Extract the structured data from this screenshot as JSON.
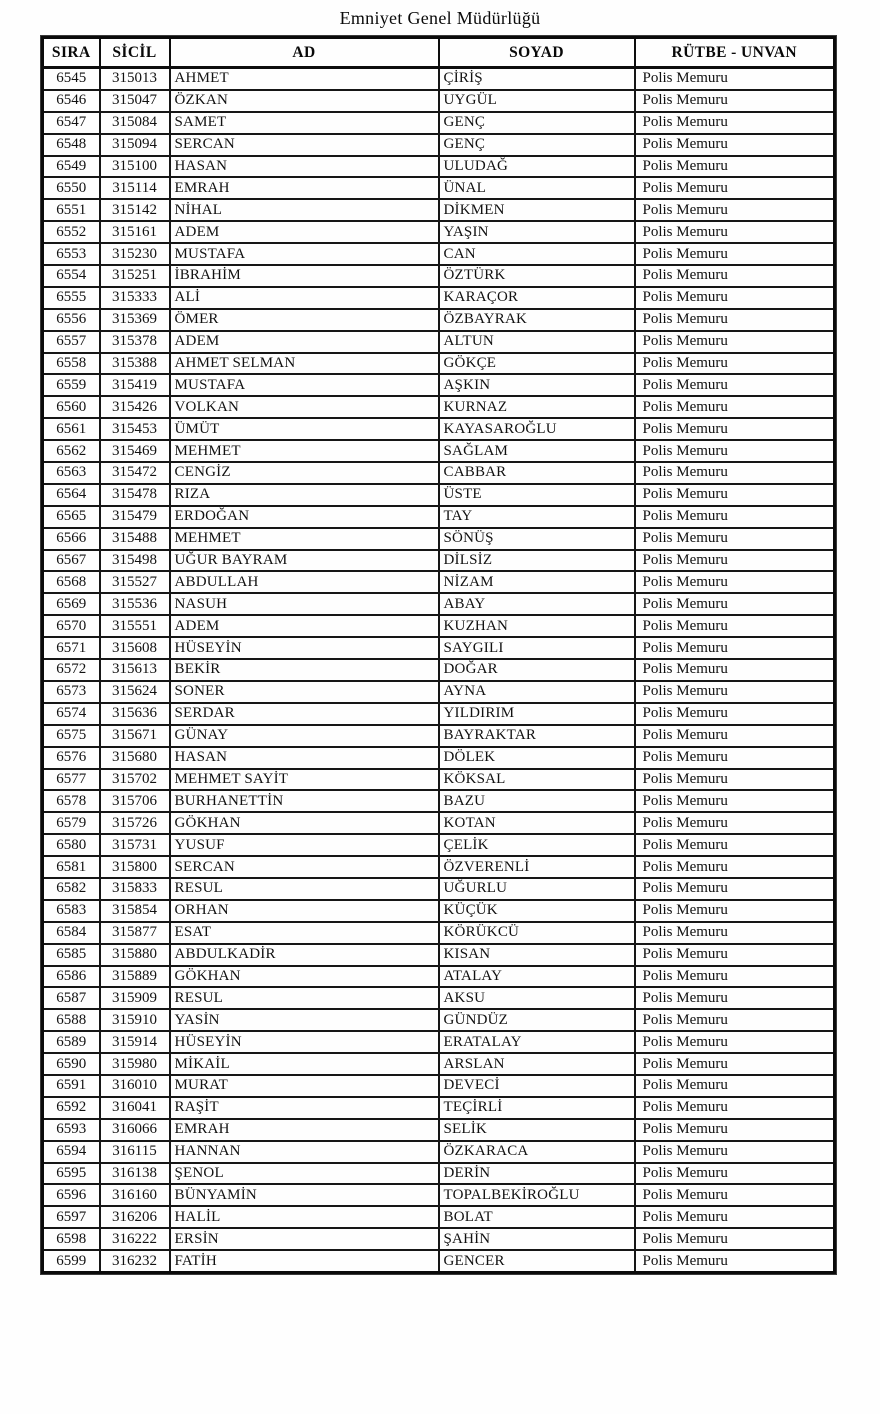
{
  "title": "Emniyet Genel Müdürlüğü",
  "table": {
    "headers": [
      "SIRA",
      "SİCİL",
      "AD",
      "SOYAD",
      "RÜTBE - UNVAN"
    ],
    "rows": [
      [
        "6545",
        "315013",
        "AHMET",
        "ÇİRİŞ",
        "Polis Memuru"
      ],
      [
        "6546",
        "315047",
        "ÖZKAN",
        "UYGÜL",
        "Polis Memuru"
      ],
      [
        "6547",
        "315084",
        "SAMET",
        "GENÇ",
        "Polis Memuru"
      ],
      [
        "6548",
        "315094",
        "SERCAN",
        "GENÇ",
        "Polis Memuru"
      ],
      [
        "6549",
        "315100",
        "HASAN",
        "ULUDAĞ",
        "Polis Memuru"
      ],
      [
        "6550",
        "315114",
        "EMRAH",
        "ÜNAL",
        "Polis Memuru"
      ],
      [
        "6551",
        "315142",
        "NİHAL",
        "DİKMEN",
        "Polis Memuru"
      ],
      [
        "6552",
        "315161",
        "ADEM",
        "YAŞIN",
        "Polis Memuru"
      ],
      [
        "6553",
        "315230",
        "MUSTAFA",
        "CAN",
        "Polis Memuru"
      ],
      [
        "6554",
        "315251",
        "İBRAHİM",
        "ÖZTÜRK",
        "Polis Memuru"
      ],
      [
        "6555",
        "315333",
        "ALİ",
        "KARAÇOR",
        "Polis Memuru"
      ],
      [
        "6556",
        "315369",
        "ÖMER",
        "ÖZBAYRAK",
        "Polis Memuru"
      ],
      [
        "6557",
        "315378",
        "ADEM",
        "ALTUN",
        "Polis Memuru"
      ],
      [
        "6558",
        "315388",
        "AHMET SELMAN",
        "GÖKÇE",
        "Polis Memuru"
      ],
      [
        "6559",
        "315419",
        "MUSTAFA",
        "AŞKIN",
        "Polis Memuru"
      ],
      [
        "6560",
        "315426",
        "VOLKAN",
        "KURNAZ",
        "Polis Memuru"
      ],
      [
        "6561",
        "315453",
        "ÜMÜT",
        "KAYASAROĞLU",
        "Polis Memuru"
      ],
      [
        "6562",
        "315469",
        "MEHMET",
        "SAĞLAM",
        "Polis Memuru"
      ],
      [
        "6563",
        "315472",
        "CENGİZ",
        "CABBAR",
        "Polis Memuru"
      ],
      [
        "6564",
        "315478",
        "RIZA",
        "ÜSTE",
        "Polis Memuru"
      ],
      [
        "6565",
        "315479",
        "ERDOĞAN",
        "TAY",
        "Polis Memuru"
      ],
      [
        "6566",
        "315488",
        "MEHMET",
        "SÖNÜŞ",
        "Polis Memuru"
      ],
      [
        "6567",
        "315498",
        "UĞUR BAYRAM",
        "DİLSİZ",
        "Polis Memuru"
      ],
      [
        "6568",
        "315527",
        "ABDULLAH",
        "NİZAM",
        "Polis Memuru"
      ],
      [
        "6569",
        "315536",
        "NASUH",
        "ABAY",
        "Polis Memuru"
      ],
      [
        "6570",
        "315551",
        "ADEM",
        "KUZHAN",
        "Polis Memuru"
      ],
      [
        "6571",
        "315608",
        "HÜSEYİN",
        "SAYGILI",
        "Polis Memuru"
      ],
      [
        "6572",
        "315613",
        "BEKİR",
        "DOĞAR",
        "Polis Memuru"
      ],
      [
        "6573",
        "315624",
        "SONER",
        "AYNA",
        "Polis Memuru"
      ],
      [
        "6574",
        "315636",
        "SERDAR",
        "YILDIRIM",
        "Polis Memuru"
      ],
      [
        "6575",
        "315671",
        "GÜNAY",
        "BAYRAKTAR",
        "Polis Memuru"
      ],
      [
        "6576",
        "315680",
        "HASAN",
        "DÖLEK",
        "Polis Memuru"
      ],
      [
        "6577",
        "315702",
        "MEHMET SAYİT",
        "KÖKSAL",
        "Polis Memuru"
      ],
      [
        "6578",
        "315706",
        "BURHANETTİN",
        "BAZU",
        "Polis Memuru"
      ],
      [
        "6579",
        "315726",
        "GÖKHAN",
        "KOTAN",
        "Polis Memuru"
      ],
      [
        "6580",
        "315731",
        "YUSUF",
        "ÇELİK",
        "Polis Memuru"
      ],
      [
        "6581",
        "315800",
        "SERCAN",
        "ÖZVERENLİ",
        "Polis Memuru"
      ],
      [
        "6582",
        "315833",
        "RESUL",
        "UĞURLU",
        "Polis Memuru"
      ],
      [
        "6583",
        "315854",
        "ORHAN",
        "KÜÇÜK",
        "Polis Memuru"
      ],
      [
        "6584",
        "315877",
        "ESAT",
        "KÖRÜKCÜ",
        "Polis Memuru"
      ],
      [
        "6585",
        "315880",
        "ABDULKADİR",
        "KISAN",
        "Polis Memuru"
      ],
      [
        "6586",
        "315889",
        "GÖKHAN",
        "ATALAY",
        "Polis Memuru"
      ],
      [
        "6587",
        "315909",
        "RESUL",
        "AKSU",
        "Polis Memuru"
      ],
      [
        "6588",
        "315910",
        "YASİN",
        "GÜNDÜZ",
        "Polis Memuru"
      ],
      [
        "6589",
        "315914",
        "HÜSEYİN",
        "ERATALAY",
        "Polis Memuru"
      ],
      [
        "6590",
        "315980",
        "MİKAİL",
        "ARSLAN",
        "Polis Memuru"
      ],
      [
        "6591",
        "316010",
        "MURAT",
        "DEVECİ",
        "Polis Memuru"
      ],
      [
        "6592",
        "316041",
        "RAŞİT",
        "TEÇİRLİ",
        "Polis Memuru"
      ],
      [
        "6593",
        "316066",
        "EMRAH",
        "SELİK",
        "Polis Memuru"
      ],
      [
        "6594",
        "316115",
        "HANNAN",
        "ÖZKARACA",
        "Polis Memuru"
      ],
      [
        "6595",
        "316138",
        "ŞENOL",
        "DERİN",
        "Polis Memuru"
      ],
      [
        "6596",
        "316160",
        "BÜNYAMİN",
        "TOPALBEKİROĞLU",
        "Polis Memuru"
      ],
      [
        "6597",
        "316206",
        "HALİL",
        "BOLAT",
        "Polis Memuru"
      ],
      [
        "6598",
        "316222",
        "ERSİN",
        "ŞAHİN",
        "Polis Memuru"
      ],
      [
        "6599",
        "316232",
        "FATİH",
        "GENCER",
        "Polis Memuru"
      ]
    ]
  }
}
